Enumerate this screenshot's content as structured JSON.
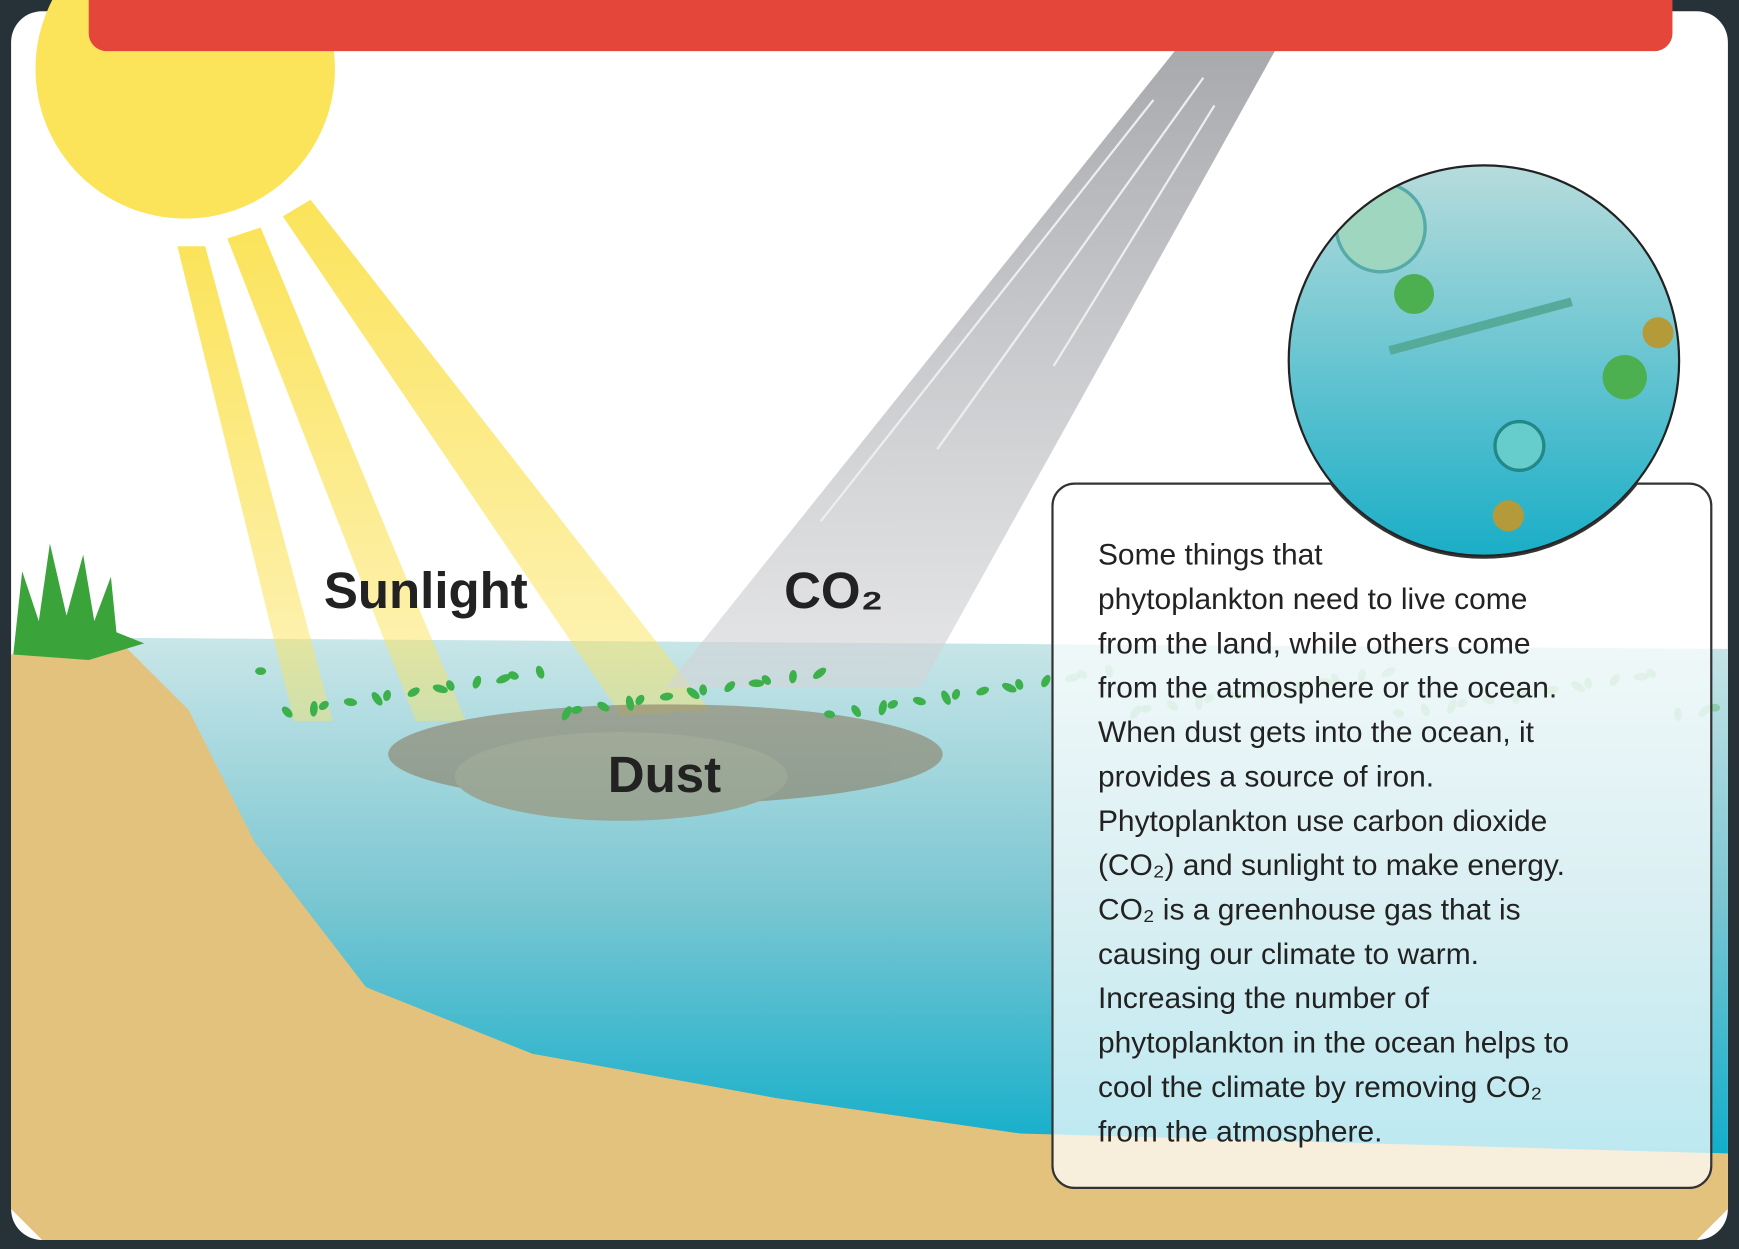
{
  "labels": {
    "sunlight": "Sunlight",
    "co2": "CO₂",
    "dust": "Dust"
  },
  "info_box": {
    "lines": [
      "Some things that",
      "phytoplankton need to live come",
      "from the land, while others come",
      "from the atmosphere or the ocean.",
      "When dust gets into the ocean, it",
      "provides a source of iron.",
      "Phytoplankton use carbon dioxide",
      "(CO₂) and sunlight to make energy.",
      "CO₂ is a greenhouse gas that is",
      "causing our climate to warm.",
      "Increasing the number of",
      "phytoplankton in the ocean helps to",
      "cool the climate by removing CO₂",
      "from the atmosphere."
    ]
  }
}
